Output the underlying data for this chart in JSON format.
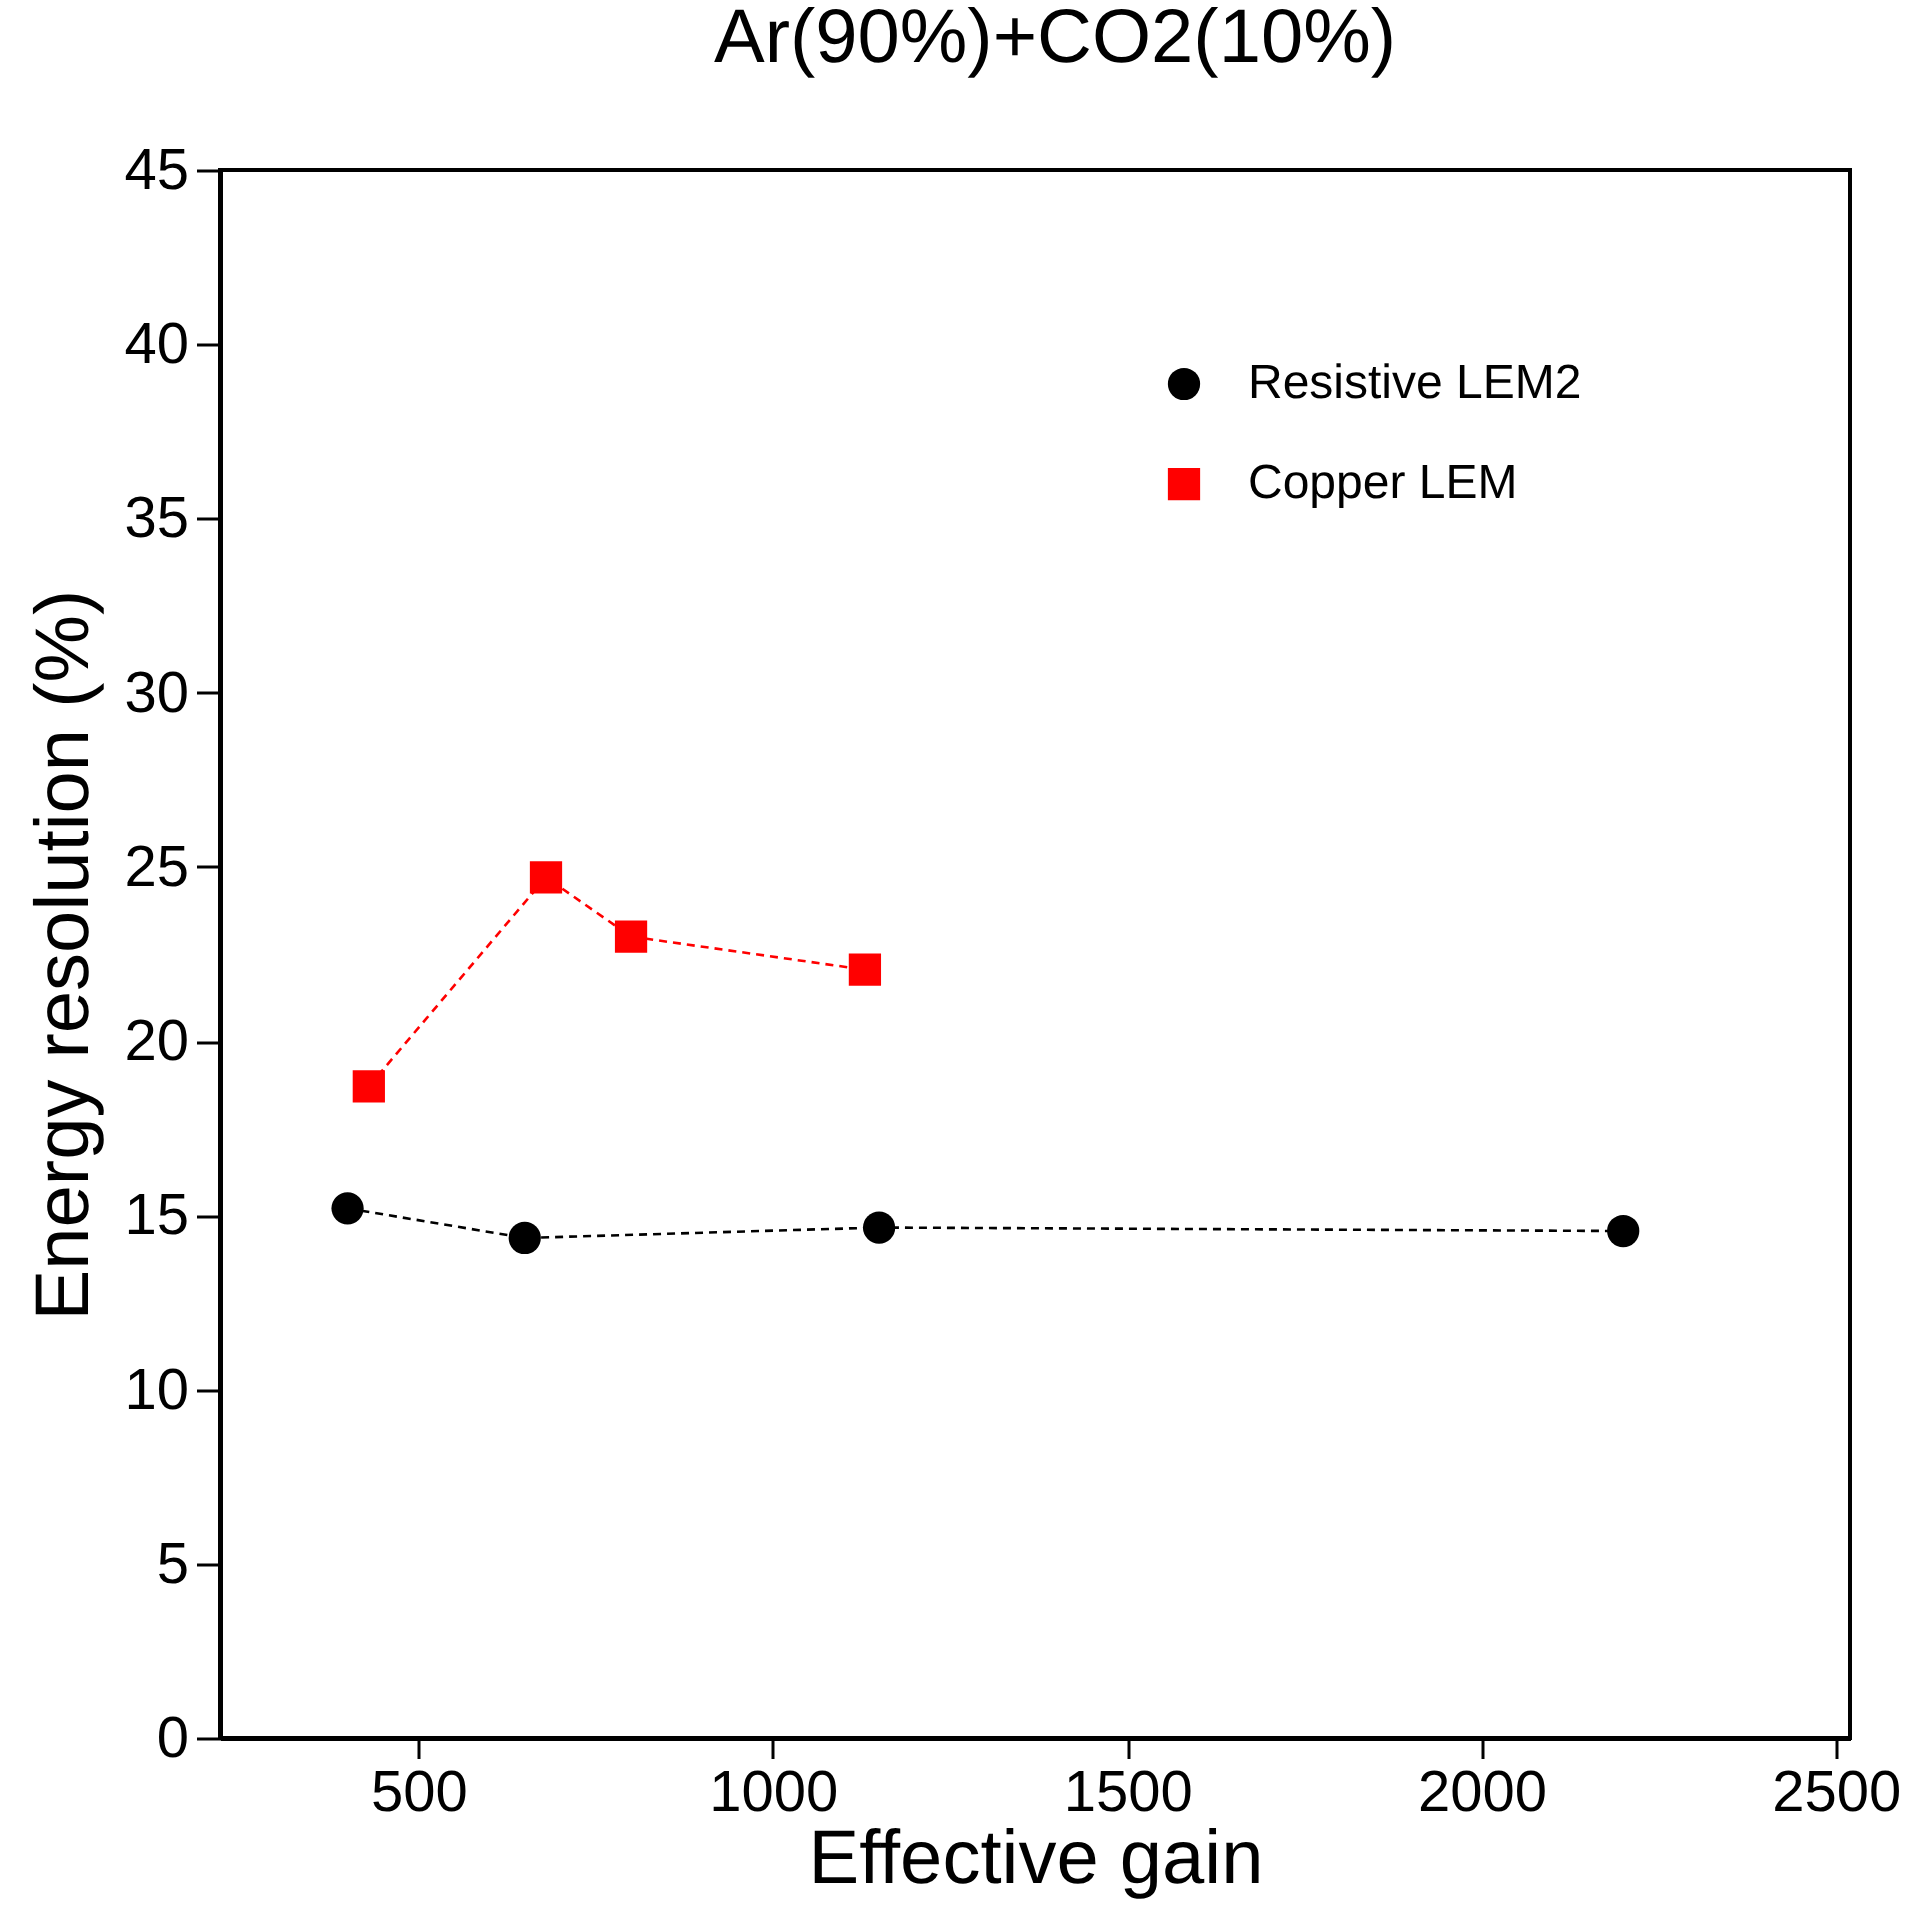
{
  "chart_data": {
    "type": "line",
    "title": "Ar(90%)+CO2(10%)",
    "xlabel": "Effective gain",
    "ylabel": "Energy resolution (%)",
    "xlim": [
      220,
      2520
    ],
    "xticks": [
      500,
      1000,
      1500,
      2000,
      2500
    ],
    "ylim": [
      0,
      45
    ],
    "yticks": [
      0,
      5,
      10,
      15,
      20,
      25,
      30,
      35,
      40,
      45
    ],
    "grid": false,
    "legend": "top right",
    "line_style": "dashed",
    "series": [
      {
        "name": "Resistive LEM2",
        "color": "#000000",
        "marker": "circle",
        "x": [
          400,
          650,
          1150,
          2200
        ],
        "values": [
          15.2,
          14.35,
          14.65,
          14.55
        ]
      },
      {
        "name": "Copper LEM",
        "color": "#ff0000",
        "marker": "square",
        "x": [
          430,
          680,
          800,
          1130
        ],
        "values": [
          18.7,
          24.7,
          23.0,
          22.05
        ]
      }
    ]
  }
}
